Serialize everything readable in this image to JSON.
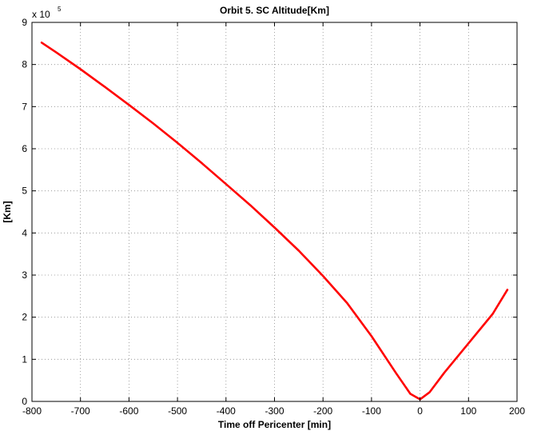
{
  "chart_data": {
    "type": "line",
    "title": "Orbit 5. SC Altitude[Km]",
    "xlabel": "Time off Pericenter [min]",
    "ylabel": "[Km]",
    "xlim": [
      -800,
      200
    ],
    "ylim": [
      0,
      900000
    ],
    "xticks": [
      -800,
      -700,
      -600,
      -500,
      -400,
      -300,
      -200,
      -100,
      0,
      100,
      200
    ],
    "yticks": [
      0,
      1,
      2,
      3,
      4,
      5,
      6,
      7,
      8,
      9
    ],
    "y_multiplier_base": "x 10",
    "y_multiplier_exponent": "5",
    "grid": true,
    "series": [
      {
        "color": "#ff0000",
        "x": [
          -780,
          -750,
          -700,
          -650,
          -600,
          -550,
          -500,
          -450,
          -400,
          -350,
          -300,
          -250,
          -200,
          -150,
          -100,
          -50,
          -20,
          0,
          20,
          50,
          100,
          150,
          180
        ],
        "y": [
          852000,
          829000,
          789000,
          747000,
          704000,
          660000,
          614000,
          566000,
          516000,
          466000,
          413000,
          358000,
          298000,
          233000,
          155000,
          68000,
          18000,
          5000,
          22000,
          68000,
          138000,
          208000,
          265000
        ]
      }
    ]
  }
}
